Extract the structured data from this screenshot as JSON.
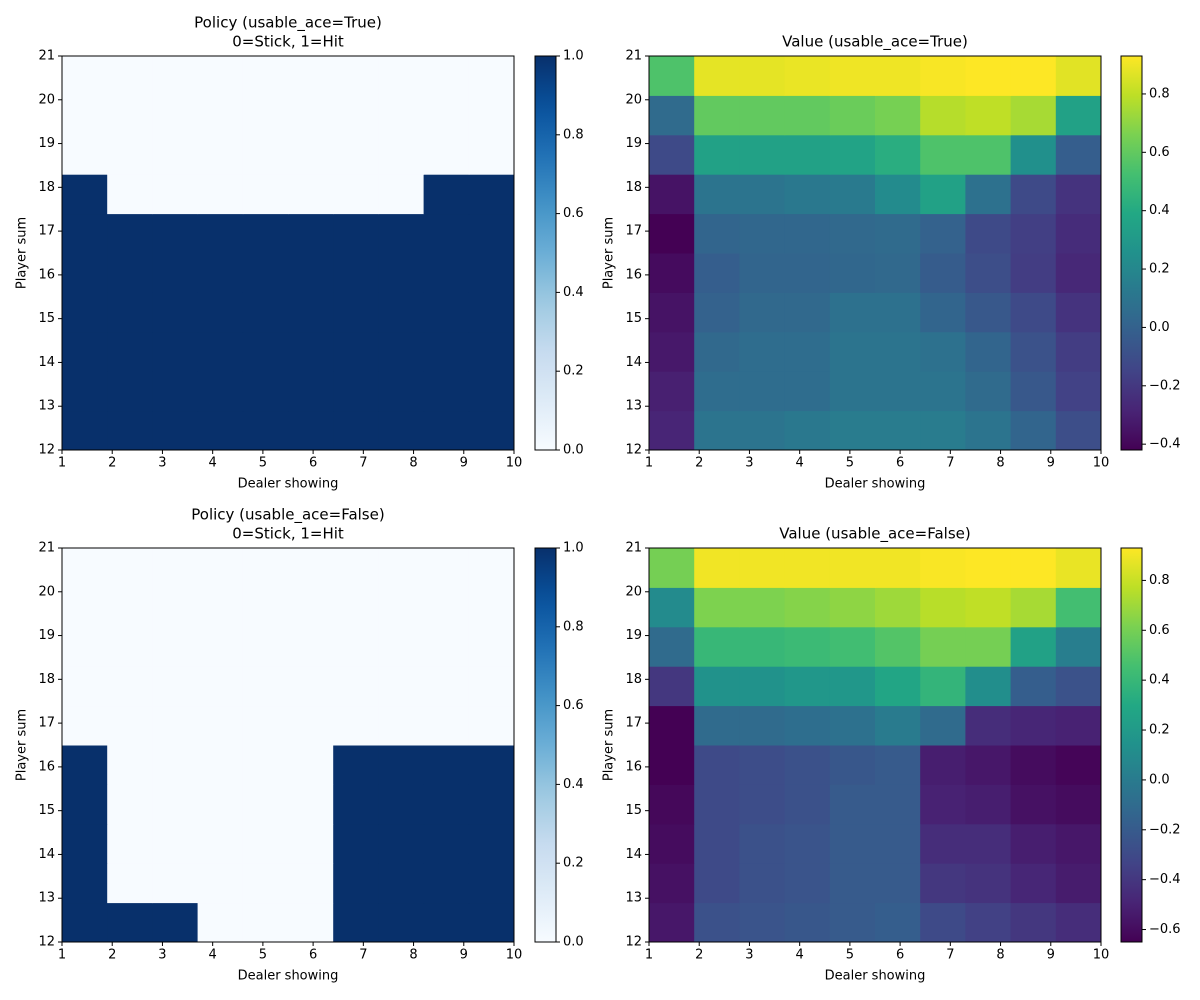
{
  "chart_data": [
    {
      "type": "heatmap",
      "title": "Policy (usable_ace=True)",
      "subtitle": "0=Stick, 1=Hit",
      "xlabel": "Dealer showing",
      "ylabel": "Player sum",
      "colormap": "Blues",
      "xlim": [
        1,
        10
      ],
      "ylim": [
        12,
        21
      ],
      "xticks": [
        1,
        2,
        3,
        4,
        5,
        6,
        7,
        8,
        9,
        10
      ],
      "yticks": [
        12,
        13,
        14,
        15,
        16,
        17,
        18,
        19,
        20,
        21
      ],
      "zlim": [
        0,
        1
      ],
      "zticks": [
        {
          "value": 0,
          "label": "0.0"
        },
        {
          "value": 0.2,
          "label": "0.2"
        },
        {
          "value": 0.4,
          "label": "0.4"
        },
        {
          "value": 0.6,
          "label": "0.6"
        },
        {
          "value": 0.8,
          "label": "0.8"
        },
        {
          "value": 1,
          "label": "1.0"
        }
      ],
      "values": [
        [
          1,
          1,
          1,
          1,
          1,
          1,
          1,
          1,
          1,
          1
        ],
        [
          1,
          1,
          1,
          1,
          1,
          1,
          1,
          1,
          1,
          1
        ],
        [
          1,
          1,
          1,
          1,
          1,
          1,
          1,
          1,
          1,
          1
        ],
        [
          1,
          1,
          1,
          1,
          1,
          1,
          1,
          1,
          1,
          1
        ],
        [
          1,
          1,
          1,
          1,
          1,
          1,
          1,
          1,
          1,
          1
        ],
        [
          1,
          1,
          1,
          1,
          1,
          1,
          1,
          1,
          1,
          1
        ],
        [
          1,
          0,
          0,
          0,
          0,
          0,
          0,
          0,
          1,
          1
        ],
        [
          0,
          0,
          0,
          0,
          0,
          0,
          0,
          0,
          0,
          0
        ],
        [
          0,
          0,
          0,
          0,
          0,
          0,
          0,
          0,
          0,
          0
        ],
        [
          0,
          0,
          0,
          0,
          0,
          0,
          0,
          0,
          0,
          0
        ]
      ]
    },
    {
      "type": "heatmap",
      "title": "Value (usable_ace=True)",
      "xlabel": "Dealer showing",
      "ylabel": "Player sum",
      "colormap": "viridis",
      "xlim": [
        1,
        10
      ],
      "ylim": [
        12,
        21
      ],
      "xticks": [
        1,
        2,
        3,
        4,
        5,
        6,
        7,
        8,
        9,
        10
      ],
      "yticks": [
        12,
        13,
        14,
        15,
        16,
        17,
        18,
        19,
        20,
        21
      ],
      "zlim": [
        -0.42,
        0.93
      ],
      "zticks": [
        {
          "value": -0.4,
          "label": "−0.4"
        },
        {
          "value": -0.2,
          "label": "−0.2"
        },
        {
          "value": 0,
          "label": "0.0"
        },
        {
          "value": 0.2,
          "label": "0.2"
        },
        {
          "value": 0.4,
          "label": "0.4"
        },
        {
          "value": 0.6,
          "label": "0.6"
        },
        {
          "value": 0.8,
          "label": "0.8"
        }
      ],
      "values": [
        [
          -0.28,
          0.1,
          0.1,
          0.12,
          0.14,
          0.14,
          0.14,
          0.1,
          0.02,
          -0.1
        ],
        [
          -0.3,
          0.06,
          0.06,
          0.06,
          0.1,
          0.1,
          0.1,
          0.05,
          -0.05,
          -0.16
        ],
        [
          -0.33,
          0.04,
          0.06,
          0.06,
          0.1,
          0.1,
          0.08,
          0.02,
          -0.08,
          -0.18
        ],
        [
          -0.35,
          0.0,
          0.04,
          0.04,
          0.08,
          0.08,
          0.02,
          -0.05,
          -0.12,
          -0.22
        ],
        [
          -0.38,
          -0.02,
          0.02,
          0.02,
          0.03,
          0.04,
          -0.03,
          -0.1,
          -0.18,
          -0.27
        ],
        [
          -0.42,
          0.02,
          0.03,
          0.03,
          0.04,
          0.05,
          0.0,
          -0.12,
          -0.17,
          -0.25
        ],
        [
          -0.35,
          0.1,
          0.1,
          0.12,
          0.13,
          0.22,
          0.35,
          0.08,
          -0.12,
          -0.22
        ],
        [
          -0.12,
          0.35,
          0.35,
          0.35,
          0.36,
          0.42,
          0.55,
          0.55,
          0.25,
          -0.02
        ],
        [
          0.05,
          0.6,
          0.6,
          0.6,
          0.62,
          0.65,
          0.78,
          0.8,
          0.75,
          0.35
        ],
        [
          0.55,
          0.88,
          0.88,
          0.89,
          0.9,
          0.9,
          0.92,
          0.93,
          0.93,
          0.87
        ]
      ]
    },
    {
      "type": "heatmap",
      "title": "Policy (usable_ace=False)",
      "subtitle": "0=Stick, 1=Hit",
      "xlabel": "Dealer showing",
      "ylabel": "Player sum",
      "colormap": "Blues",
      "xlim": [
        1,
        10
      ],
      "ylim": [
        12,
        21
      ],
      "xticks": [
        1,
        2,
        3,
        4,
        5,
        6,
        7,
        8,
        9,
        10
      ],
      "yticks": [
        12,
        13,
        14,
        15,
        16,
        17,
        18,
        19,
        20,
        21
      ],
      "zlim": [
        0,
        1
      ],
      "zticks": [
        {
          "value": 0,
          "label": "0.0"
        },
        {
          "value": 0.2,
          "label": "0.2"
        },
        {
          "value": 0.4,
          "label": "0.4"
        },
        {
          "value": 0.6,
          "label": "0.6"
        },
        {
          "value": 0.8,
          "label": "0.8"
        },
        {
          "value": 1,
          "label": "1.0"
        }
      ],
      "values": [
        [
          1,
          1,
          1,
          0,
          0,
          0,
          1,
          1,
          1,
          1
        ],
        [
          1,
          0,
          0,
          0,
          0,
          0,
          1,
          1,
          1,
          1
        ],
        [
          1,
          0,
          0,
          0,
          0,
          0,
          1,
          1,
          1,
          1
        ],
        [
          1,
          0,
          0,
          0,
          0,
          0,
          1,
          1,
          1,
          1
        ],
        [
          1,
          0,
          0,
          0,
          0,
          0,
          1,
          1,
          1,
          1
        ],
        [
          0,
          0,
          0,
          0,
          0,
          0,
          0,
          0,
          0,
          0
        ],
        [
          0,
          0,
          0,
          0,
          0,
          0,
          0,
          0,
          0,
          0
        ],
        [
          0,
          0,
          0,
          0,
          0,
          0,
          0,
          0,
          0,
          0
        ],
        [
          0,
          0,
          0,
          0,
          0,
          0,
          0,
          0,
          0,
          0
        ],
        [
          0,
          0,
          0,
          0,
          0,
          0,
          0,
          0,
          0,
          0
        ]
      ]
    },
    {
      "type": "heatmap",
      "title": "Value (usable_ace=False)",
      "xlabel": "Dealer showing",
      "ylabel": "Player sum",
      "colormap": "viridis",
      "xlim": [
        1,
        10
      ],
      "ylim": [
        12,
        21
      ],
      "xticks": [
        1,
        2,
        3,
        4,
        5,
        6,
        7,
        8,
        9,
        10
      ],
      "yticks": [
        12,
        13,
        14,
        15,
        16,
        17,
        18,
        19,
        20,
        21
      ],
      "zlim": [
        -0.65,
        0.93
      ],
      "zticks": [
        {
          "value": -0.6,
          "label": "−0.6"
        },
        {
          "value": -0.4,
          "label": "−0.4"
        },
        {
          "value": -0.2,
          "label": "−0.2"
        },
        {
          "value": 0,
          "label": "0.0"
        },
        {
          "value": 0.2,
          "label": "0.2"
        },
        {
          "value": 0.4,
          "label": "0.4"
        },
        {
          "value": 0.6,
          "label": "0.6"
        },
        {
          "value": 0.8,
          "label": "0.8"
        }
      ],
      "values": [
        [
          -0.55,
          -0.26,
          -0.24,
          -0.22,
          -0.2,
          -0.18,
          -0.3,
          -0.35,
          -0.4,
          -0.45
        ],
        [
          -0.58,
          -0.3,
          -0.26,
          -0.24,
          -0.2,
          -0.2,
          -0.4,
          -0.42,
          -0.48,
          -0.53
        ],
        [
          -0.6,
          -0.3,
          -0.26,
          -0.24,
          -0.2,
          -0.2,
          -0.45,
          -0.45,
          -0.52,
          -0.55
        ],
        [
          -0.62,
          -0.3,
          -0.28,
          -0.26,
          -0.2,
          -0.2,
          -0.5,
          -0.52,
          -0.58,
          -0.6
        ],
        [
          -0.65,
          -0.3,
          -0.28,
          -0.26,
          -0.22,
          -0.2,
          -0.52,
          -0.55,
          -0.6,
          -0.63
        ],
        [
          -0.65,
          -0.1,
          -0.1,
          -0.08,
          -0.06,
          0.0,
          -0.1,
          -0.45,
          -0.48,
          -0.5
        ],
        [
          -0.4,
          0.15,
          0.15,
          0.18,
          0.18,
          0.28,
          0.38,
          0.12,
          -0.18,
          -0.25
        ],
        [
          -0.1,
          0.4,
          0.4,
          0.42,
          0.44,
          0.5,
          0.6,
          0.6,
          0.25,
          0.02
        ],
        [
          0.1,
          0.62,
          0.62,
          0.64,
          0.66,
          0.7,
          0.76,
          0.78,
          0.72,
          0.45
        ],
        [
          0.6,
          0.9,
          0.9,
          0.9,
          0.9,
          0.9,
          0.92,
          0.93,
          0.93,
          0.88
        ]
      ]
    }
  ]
}
